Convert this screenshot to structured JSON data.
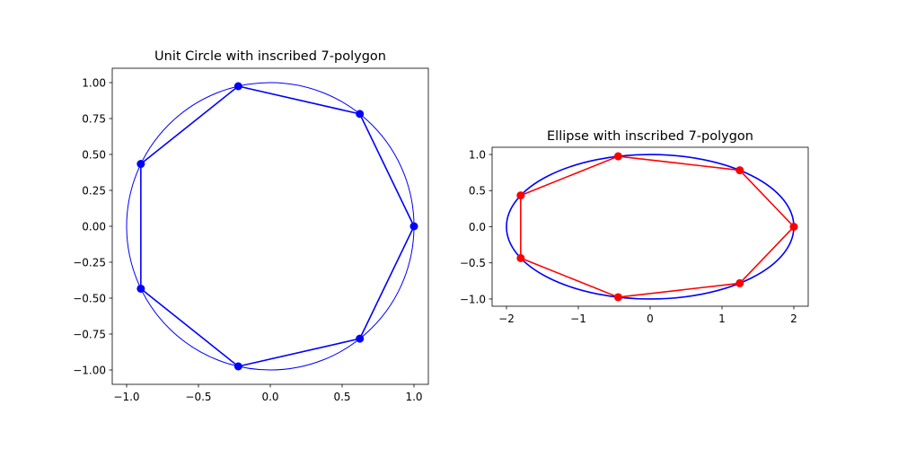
{
  "chart_data": [
    {
      "type": "line",
      "title": "Unit Circle with inscribed 7-polygon",
      "xlabel": "",
      "ylabel": "",
      "xlim": [
        -1.1,
        1.1
      ],
      "ylim": [
        -1.1,
        1.1
      ],
      "grid": false,
      "xticks": [
        -1.0,
        -0.5,
        0.0,
        0.5,
        1.0
      ],
      "xtick_labels": [
        "−1.0",
        "−0.5",
        "0.0",
        "0.5",
        "1.0"
      ],
      "yticks": [
        1.0,
        0.75,
        0.5,
        0.25,
        0.0,
        -0.25,
        -0.5,
        -0.75,
        -1.0
      ],
      "ytick_labels": [
        "1.00",
        "0.75",
        "0.50",
        "0.25",
        "0.00",
        "−0.25",
        "−0.50",
        "−0.75",
        "−1.00"
      ],
      "curve": {
        "shape": "ellipse",
        "center": [
          0,
          0
        ],
        "rx": 1.0,
        "ry": 1.0,
        "color": "#0000ff",
        "width": "thin"
      },
      "polygon": {
        "color": "#0000ff",
        "marker_color": "#0000ff",
        "x": [
          1.0,
          0.623,
          -0.223,
          -0.901,
          -0.901,
          -0.223,
          0.623
        ],
        "y": [
          0.0,
          0.782,
          0.975,
          0.434,
          -0.434,
          -0.975,
          -0.782
        ]
      }
    },
    {
      "type": "line",
      "title": "Ellipse with inscribed 7-polygon",
      "xlabel": "",
      "ylabel": "",
      "xlim": [
        -2.2,
        2.2
      ],
      "ylim": [
        -1.1,
        1.1
      ],
      "grid": false,
      "xticks": [
        -2,
        -1,
        0,
        1,
        2
      ],
      "xtick_labels": [
        "−2",
        "−1",
        "0",
        "1",
        "2"
      ],
      "yticks": [
        1.0,
        0.5,
        0.0,
        -0.5,
        -1.0
      ],
      "ytick_labels": [
        "1.0",
        "0.5",
        "0.0",
        "−0.5",
        "−1.0"
      ],
      "curve": {
        "shape": "ellipse",
        "center": [
          0,
          0
        ],
        "rx": 2.0,
        "ry": 1.0,
        "color": "#0000ff",
        "width": "normal"
      },
      "polygon": {
        "color": "#ff0000",
        "marker_color": "#ff0000",
        "x": [
          2.0,
          1.247,
          -0.445,
          -1.802,
          -1.802,
          -0.445,
          1.247
        ],
        "y": [
          0.0,
          0.782,
          0.975,
          0.434,
          -0.434,
          -0.975,
          -0.782
        ]
      }
    }
  ]
}
